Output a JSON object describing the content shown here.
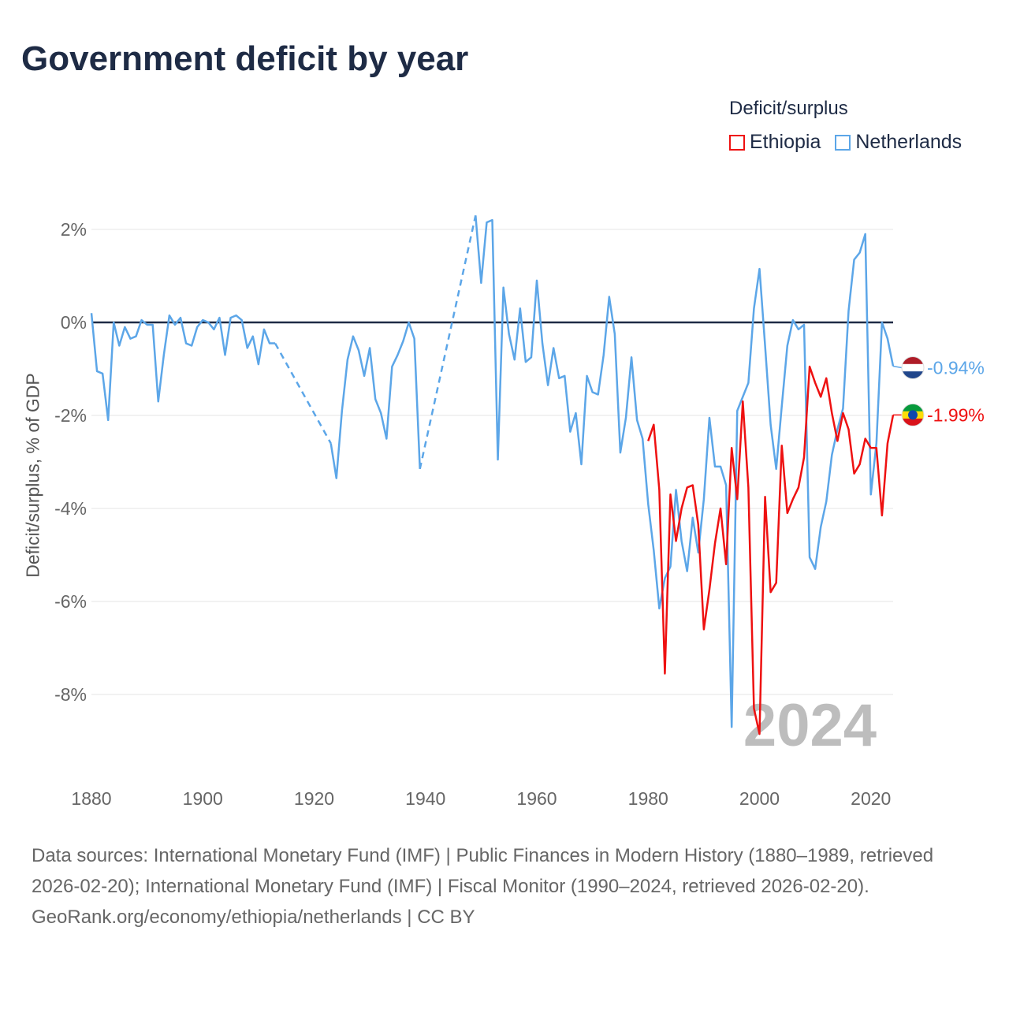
{
  "title": "Government deficit by year",
  "legend": {
    "title": "Deficit/surplus",
    "items": [
      {
        "name": "Ethiopia",
        "color": "#ee1111"
      },
      {
        "name": "Netherlands",
        "color": "#5ca6e8"
      }
    ]
  },
  "footer": {
    "sources": "Data sources: International Monetary Fund (IMF) | Public Finances in Modern History (1880–1989, retrieved 2026-02-20); International Monetary Fund (IMF) | Fiscal Monitor (1990–2024, retrieved 2026-02-20).",
    "credit": "GeoRank.org/economy/ethiopia/netherlands | CC BY"
  },
  "chart_data": {
    "type": "line",
    "title": "Government deficit by year",
    "xlabel": "",
    "ylabel": "Deficit/surplus, % of GDP",
    "xlim": [
      1880,
      2024
    ],
    "ylim": [
      -9.5,
      2.4
    ],
    "x_ticks": [
      1880,
      1900,
      1920,
      1940,
      1960,
      1980,
      2000,
      2020
    ],
    "x_tick_labels": [
      "1880",
      "1900",
      "1920",
      "1940",
      "1960",
      "1980",
      "2000",
      "2020"
    ],
    "y_ticks": [
      2,
      0,
      -2,
      -4,
      -6,
      -8
    ],
    "y_tick_labels": [
      "2%",
      "0%",
      "-2%",
      "-4%",
      "-6%",
      "-8%"
    ],
    "year_watermark": "2024",
    "end_labels": {
      "Netherlands": "-0.94%",
      "Ethiopia": "-1.99%"
    },
    "series": [
      {
        "name": "Netherlands",
        "color": "#5ca6e8",
        "start_year": 1880,
        "values": [
          0.2,
          -1.05,
          -1.1,
          -2.1,
          0.0,
          -0.5,
          -0.1,
          -0.35,
          -0.3,
          0.05,
          -0.05,
          -0.05,
          -1.7,
          -0.7,
          0.15,
          -0.05,
          0.1,
          -0.45,
          -0.5,
          -0.1,
          0.05,
          0.0,
          -0.15,
          0.1,
          -0.7,
          0.1,
          0.15,
          0.05,
          -0.55,
          -0.3,
          -0.9,
          -0.15,
          -0.45,
          -0.45,
          null,
          null,
          null,
          null,
          null,
          null,
          null,
          null,
          null,
          -2.6,
          -3.35,
          -1.9,
          -0.8,
          -0.3,
          -0.6,
          -1.15,
          -0.55,
          -1.65,
          -1.95,
          -2.5,
          -0.95,
          -0.7,
          -0.4,
          0.0,
          -0.35,
          -3.15,
          null,
          null,
          null,
          null,
          null,
          null,
          null,
          null,
          null,
          2.3,
          0.85,
          2.15,
          2.2,
          -2.95,
          0.75,
          -0.25,
          -0.8,
          0.3,
          -0.85,
          -0.75,
          0.9,
          -0.45,
          -1.35,
          -0.55,
          -1.2,
          -1.15,
          -2.35,
          -1.95,
          -3.05,
          -1.15,
          -1.5,
          -1.55,
          -0.7,
          0.55,
          -0.25,
          -2.8,
          -2.05,
          -0.75,
          -2.1,
          -2.5,
          -3.9,
          -4.9,
          -6.15,
          -5.5,
          -5.25,
          -3.6,
          -4.7,
          -5.35,
          -4.2,
          -4.95,
          -3.8,
          -2.05,
          -3.1,
          -3.1,
          -3.5,
          -8.7,
          -1.9,
          -1.6,
          -1.3,
          0.3,
          1.15,
          -0.5,
          -2.2,
          -3.15,
          -1.8,
          -0.5,
          0.05,
          -0.15,
          -0.05,
          -5.05,
          -5.3,
          -4.4,
          -3.85,
          -2.85,
          -2.3,
          -1.85,
          0.25,
          1.35,
          1.5,
          1.9,
          -3.7,
          -2.6,
          0.0,
          -0.35,
          -0.94
        ]
      },
      {
        "name": "Ethiopia",
        "color": "#ee1111",
        "start_year": 1980,
        "values": [
          -2.55,
          -2.2,
          -3.6,
          -7.55,
          -3.7,
          -4.7,
          -4.0,
          -3.55,
          -3.5,
          -4.35,
          -6.6,
          -5.75,
          -4.75,
          -4.0,
          -5.2,
          -2.7,
          -3.8,
          -1.7,
          -3.55,
          -8.3,
          -8.85,
          -3.75,
          -5.8,
          -5.6,
          -2.65,
          -4.1,
          -3.8,
          -3.55,
          -2.9,
          -0.95,
          -1.3,
          -1.6,
          -1.2,
          -1.95,
          -2.55,
          -1.95,
          -2.3,
          -3.25,
          -3.05,
          -2.5,
          -2.7,
          -2.7,
          -4.15,
          -2.6,
          -1.99
        ]
      }
    ]
  }
}
